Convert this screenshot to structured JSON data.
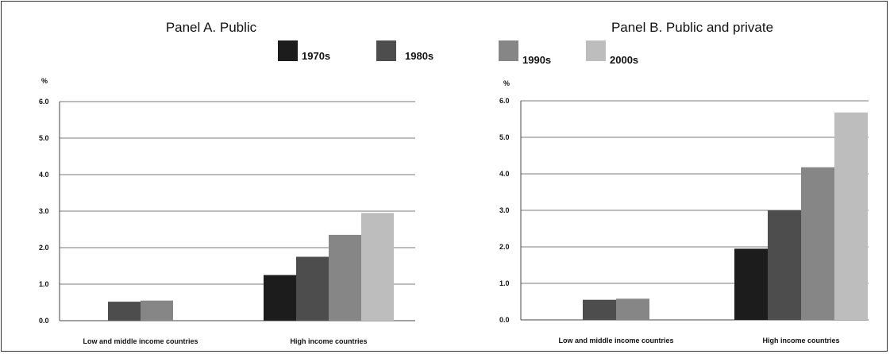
{
  "chart_data": [
    {
      "type": "bar",
      "title": "Panel A. Public",
      "ylabel": "%",
      "categories": [
        "Low and middle income countries",
        "High income countries"
      ],
      "ylim": [
        0,
        6
      ],
      "yticks": [
        "0.0",
        "1.0",
        "2.0",
        "3.0",
        "4.0",
        "5.0",
        "6.0"
      ],
      "grid": true,
      "series": [
        {
          "name": "1970s",
          "values": [
            0,
            1.25
          ]
        },
        {
          "name": "1980s",
          "values": [
            0.52,
            1.75
          ]
        },
        {
          "name": "1990s",
          "values": [
            0.55,
            2.35
          ]
        },
        {
          "name": "2000s",
          "values": [
            0,
            2.95
          ]
        }
      ]
    },
    {
      "type": "bar",
      "title": "Panel B. Public and private",
      "ylabel": "%",
      "categories": [
        "Low and middle income countries",
        "High income countries"
      ],
      "ylim": [
        0,
        6
      ],
      "yticks": [
        "0.0",
        "1.0",
        "2.0",
        "3.0",
        "4.0",
        "5.0",
        "6.0"
      ],
      "grid": true,
      "series": [
        {
          "name": "1970s",
          "values": [
            0,
            1.95
          ]
        },
        {
          "name": "1980s",
          "values": [
            0.55,
            3.0
          ]
        },
        {
          "name": "1990s",
          "values": [
            0.58,
            4.18
          ]
        },
        {
          "name": "2000s",
          "values": [
            0,
            5.68
          ]
        }
      ]
    }
  ],
  "legend": {
    "placement": "top-center",
    "items": [
      {
        "name": "1970s",
        "color": "#1c1c1c"
      },
      {
        "name": "1980s",
        "color": "#4d4d4d"
      },
      {
        "name": "1990s",
        "color": "#868686"
      },
      {
        "name": "2000s",
        "color": "#bdbdbd"
      }
    ]
  },
  "colors": {
    "series": [
      "#1c1c1c",
      "#4d4d4d",
      "#868686",
      "#bdbdbd"
    ],
    "grid": "#7a7a7a",
    "axis": "#444444"
  }
}
